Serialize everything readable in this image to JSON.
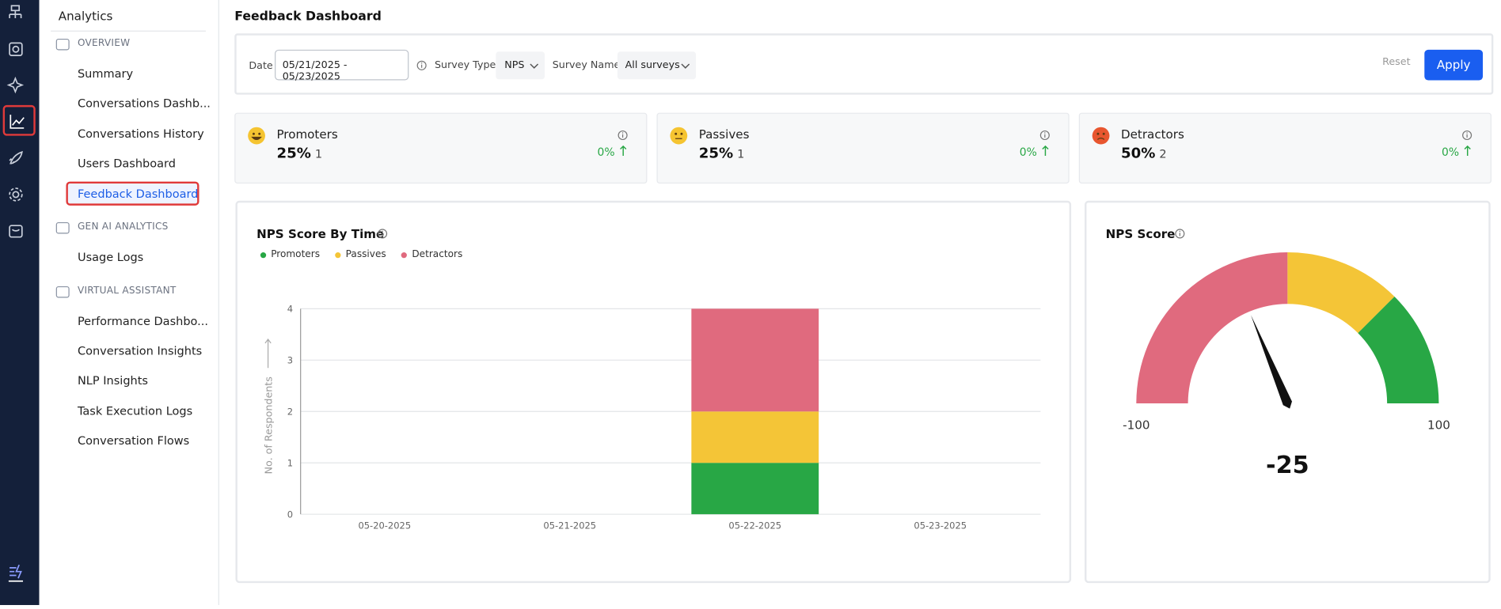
{
  "sidebar": {
    "title": "Analytics",
    "sections": [
      {
        "label": "OVERVIEW",
        "items": [
          {
            "label": "Summary"
          },
          {
            "label": "Conversations Dashb..."
          },
          {
            "label": "Conversations History"
          },
          {
            "label": "Users Dashboard"
          },
          {
            "label": "Feedback Dashboard",
            "active": true
          }
        ]
      },
      {
        "label": "GEN AI ANALYTICS",
        "items": [
          {
            "label": "Usage Logs"
          }
        ]
      },
      {
        "label": "VIRTUAL ASSISTANT",
        "items": [
          {
            "label": "Performance Dashbo..."
          },
          {
            "label": "Conversation Insights"
          },
          {
            "label": "NLP Insights"
          },
          {
            "label": "Task Execution Logs"
          },
          {
            "label": "Conversation Flows"
          }
        ]
      }
    ]
  },
  "header": {
    "title": "Feedback Dashboard"
  },
  "filters": {
    "date_label": "Date",
    "date_value": "05/21/2025 - 05/23/2025",
    "survey_type_label": "Survey Type",
    "survey_type_value": "NPS",
    "survey_name_label": "Survey Name",
    "survey_name_value": "All surveys",
    "reset": "Reset",
    "apply": "Apply"
  },
  "cards": [
    {
      "label": "Promoters",
      "percent": "25%",
      "count": 1,
      "change": "0%"
    },
    {
      "label": "Passives",
      "percent": "25%",
      "count": 1,
      "change": "0%"
    },
    {
      "label": "Detractors",
      "percent": "50%",
      "count": 2,
      "change": "0%"
    }
  ],
  "chart_data": [
    {
      "type": "bar",
      "stacked": true,
      "title": "NPS Score By Time",
      "y_label": "No. of Respondents",
      "categories": [
        "05-20-2025",
        "05-21-2025",
        "05-22-2025",
        "05-23-2025"
      ],
      "series": [
        {
          "name": "Promoters",
          "color": "#28a745",
          "values": [
            0,
            0,
            1,
            0
          ]
        },
        {
          "name": "Passives",
          "color": "#f4c537",
          "values": [
            0,
            0,
            1,
            0
          ]
        },
        {
          "name": "Detractors",
          "color": "#e06a7e",
          "values": [
            0,
            0,
            2,
            0
          ]
        }
      ],
      "ylim": [
        0,
        4
      ],
      "yticks": [
        0,
        1,
        2,
        3,
        4
      ],
      "grid": true
    },
    {
      "type": "gauge",
      "title": "NPS Score",
      "value": -25,
      "lim": [
        -100,
        100
      ],
      "ticks": [
        -100,
        100
      ],
      "bands": [
        {
          "from": -100,
          "to": 0,
          "color": "#e06a7e"
        },
        {
          "from": 0,
          "to": 50,
          "color": "#f4c537"
        },
        {
          "from": 50,
          "to": 100,
          "color": "#28a745"
        }
      ],
      "needle_color": "#111111"
    }
  ]
}
